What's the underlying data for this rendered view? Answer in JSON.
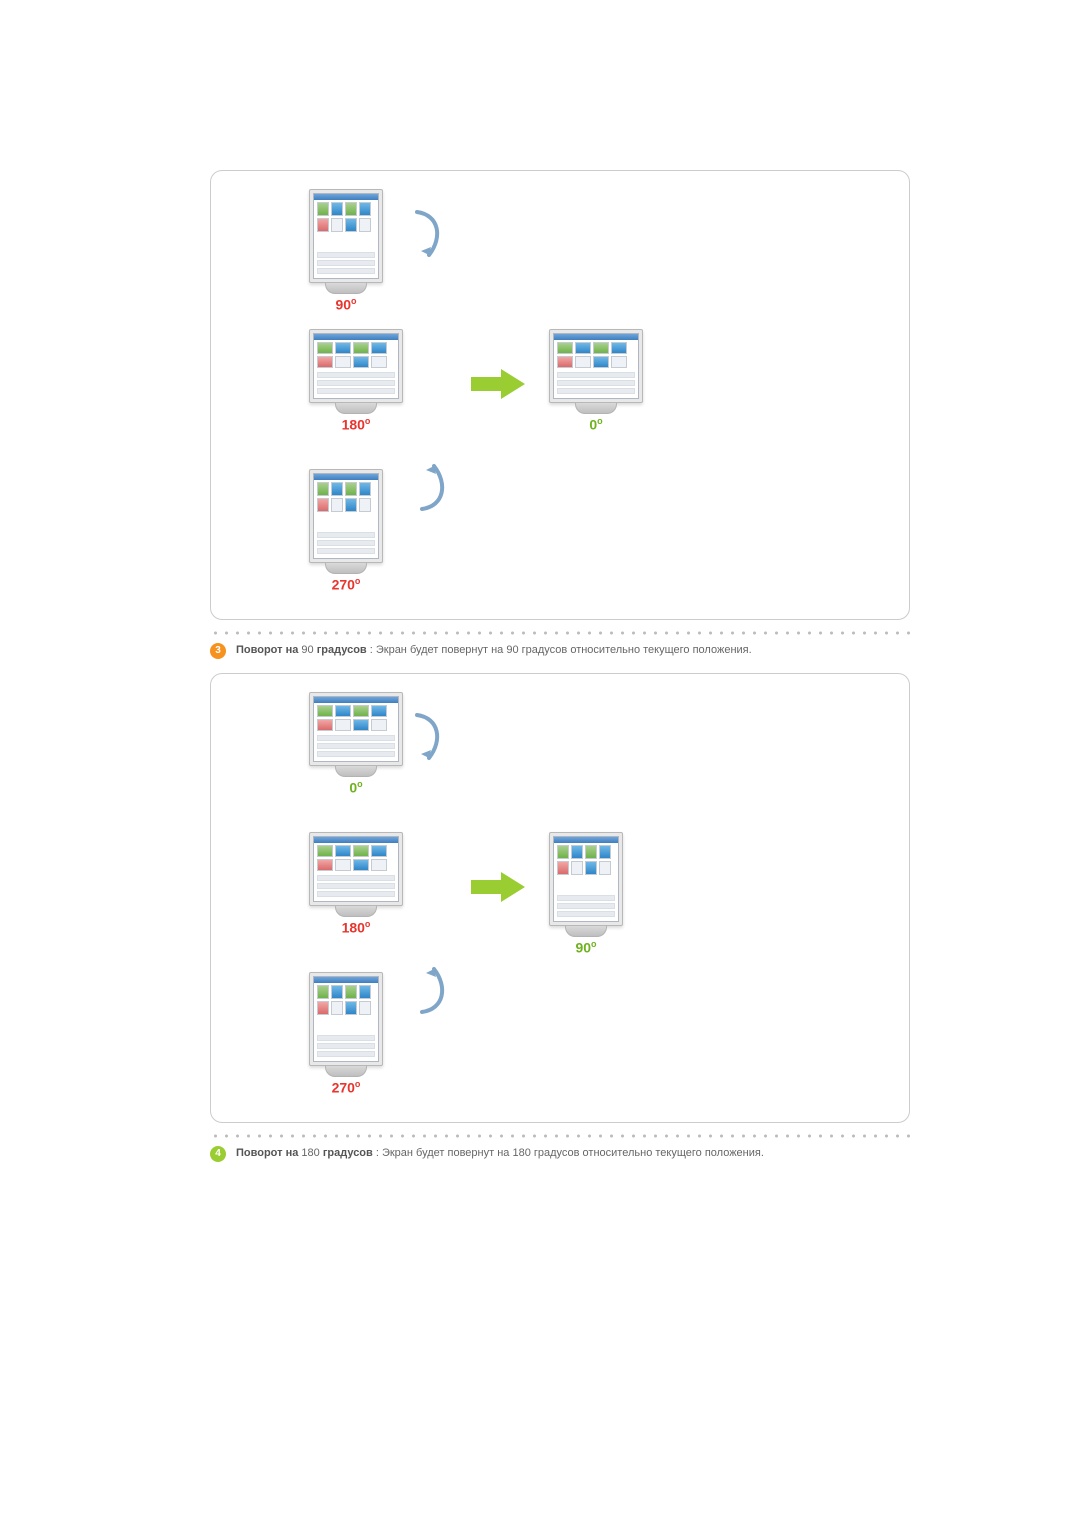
{
  "colors": {
    "green_deg": "#6fb21f",
    "red_deg": "#e8352e",
    "bullet3": "#f7921e",
    "bullet4": "#9acd32",
    "arrow": "#9acd32",
    "rot_stroke": "#7fa6c9"
  },
  "sections": [
    {
      "bullet_num": "3",
      "bullet_color_key": "bullet3",
      "title_bold1": "Поворот на",
      "title_deg": "90",
      "title_bold2": "градусов",
      "body": " : Экран будет повернут на 90 градусов относительно текущего положения.",
      "diagram": {
        "top": {
          "orient": "port",
          "deg": "90",
          "color": "red_deg"
        },
        "mid": {
          "orient": "land",
          "deg": "180",
          "color": "red_deg"
        },
        "bot": {
          "orient": "port",
          "deg": "270",
          "color": "red_deg"
        },
        "right": {
          "orient": "land",
          "deg": "0",
          "color": "green_deg"
        }
      }
    },
    {
      "bullet_num": "4",
      "bullet_color_key": "bullet4",
      "title_bold1": "Поворот на",
      "title_deg": "180",
      "title_bold2": "градусов",
      "body": " : Экран будет повернут на 180 градусов относительно текущего положения.",
      "diagram": {
        "top": {
          "orient": "land",
          "deg": "0",
          "color": "green_deg"
        },
        "mid": {
          "orient": "land",
          "deg": "180",
          "color": "red_deg"
        },
        "bot": {
          "orient": "port",
          "deg": "270",
          "color": "red_deg"
        },
        "right": {
          "orient": "port",
          "deg": "90",
          "color": "green_deg"
        }
      }
    }
  ]
}
